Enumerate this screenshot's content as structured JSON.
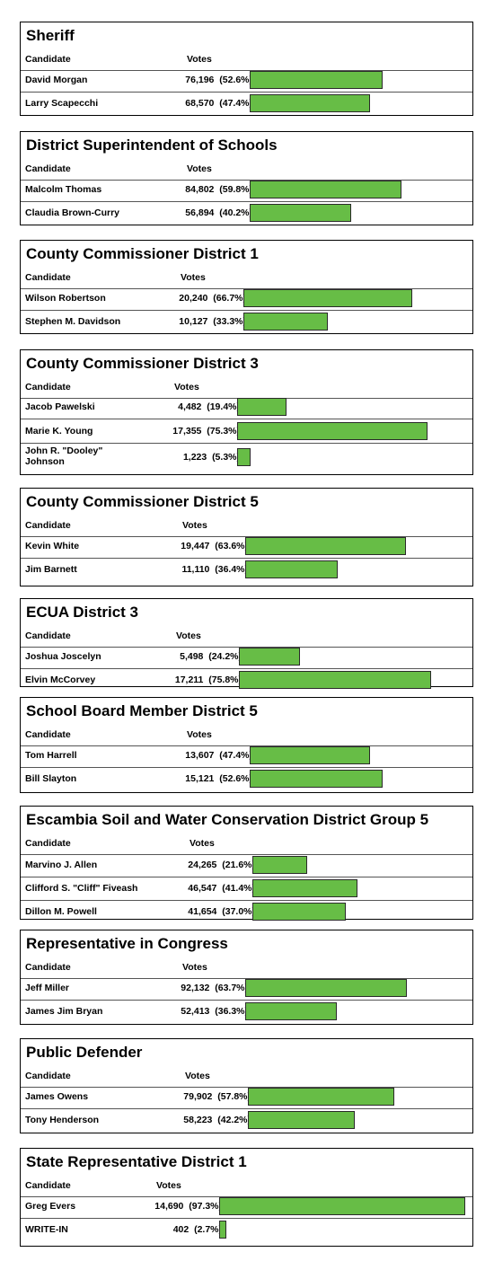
{
  "chart_data": [
    {
      "type": "bar",
      "title": "Sheriff",
      "xlabel": "",
      "ylabel": "",
      "headers": {
        "candidate": "Candidate",
        "votes": "Votes"
      },
      "categories": [
        "David Morgan",
        "Larry Scapecchi"
      ],
      "values": [
        76196,
        68570
      ],
      "votes_text": [
        "76,196",
        "68,570"
      ],
      "pct": [
        52.6,
        47.4
      ],
      "pct_text": [
        "(52.6%)",
        "(47.4%)"
      ]
    },
    {
      "type": "bar",
      "title": "District Superintendent of Schools",
      "xlabel": "",
      "ylabel": "",
      "headers": {
        "candidate": "Candidate",
        "votes": "Votes"
      },
      "categories": [
        "Malcolm Thomas",
        "Claudia Brown-Curry"
      ],
      "values": [
        84802,
        56894
      ],
      "votes_text": [
        "84,802",
        "56,894"
      ],
      "pct": [
        59.8,
        40.2
      ],
      "pct_text": [
        "(59.8%)",
        "(40.2%)"
      ]
    },
    {
      "type": "bar",
      "title": "County Commissioner District 1",
      "xlabel": "",
      "ylabel": "",
      "headers": {
        "candidate": "Candidate",
        "votes": "Votes"
      },
      "categories": [
        "Wilson Robertson",
        "Stephen M. Davidson"
      ],
      "values": [
        20240,
        10127
      ],
      "votes_text": [
        "20,240",
        "10,127"
      ],
      "pct": [
        66.7,
        33.3
      ],
      "pct_text": [
        "(66.7%)",
        "(33.3%)"
      ]
    },
    {
      "type": "bar",
      "title": "County Commissioner District 3",
      "xlabel": "",
      "ylabel": "",
      "headers": {
        "candidate": "Candidate",
        "votes": "Votes"
      },
      "categories": [
        "Jacob Pawelski",
        "Marie K. Young",
        "John R. \"Dooley\" Johnson"
      ],
      "values": [
        4482,
        17355,
        1223
      ],
      "votes_text": [
        "4,482",
        "17,355",
        "1,223"
      ],
      "pct": [
        19.4,
        75.3,
        5.3
      ],
      "pct_text": [
        "(19.4%)",
        "(75.3%)",
        "(5.3%)"
      ]
    },
    {
      "type": "bar",
      "title": "County Commissioner District 5",
      "xlabel": "",
      "ylabel": "",
      "headers": {
        "candidate": "Candidate",
        "votes": "Votes"
      },
      "categories": [
        "Kevin White",
        "Jim Barnett"
      ],
      "values": [
        19447,
        11110
      ],
      "votes_text": [
        "19,447",
        "11,110"
      ],
      "pct": [
        63.6,
        36.4
      ],
      "pct_text": [
        "(63.6%)",
        "(36.4%)"
      ]
    },
    {
      "type": "bar",
      "title": "ECUA District 3",
      "xlabel": "",
      "ylabel": "",
      "headers": {
        "candidate": "Candidate",
        "votes": "Votes"
      },
      "categories": [
        "Joshua Joscelyn",
        "Elvin McCorvey"
      ],
      "values": [
        5498,
        17211
      ],
      "votes_text": [
        "5,498",
        "17,211"
      ],
      "pct": [
        24.2,
        75.8
      ],
      "pct_text": [
        "(24.2%)",
        "(75.8%)"
      ]
    },
    {
      "type": "bar",
      "title": "School Board Member District 5",
      "xlabel": "",
      "ylabel": "",
      "headers": {
        "candidate": "Candidate",
        "votes": "Votes"
      },
      "categories": [
        "Tom Harrell",
        "Bill Slayton"
      ],
      "values": [
        13607,
        15121
      ],
      "votes_text": [
        "13,607",
        "15,121"
      ],
      "pct": [
        47.4,
        52.6
      ],
      "pct_text": [
        "(47.4%)",
        "(52.6%)"
      ]
    },
    {
      "type": "bar",
      "title": "Escambia Soil and Water Conservation District Group 5",
      "xlabel": "",
      "ylabel": "",
      "headers": {
        "candidate": "Candidate",
        "votes": "Votes"
      },
      "categories": [
        "Marvino J. Allen",
        "Clifford S. \"Cliff\" Fiveash",
        "Dillon M. Powell"
      ],
      "values": [
        24265,
        46547,
        41654
      ],
      "votes_text": [
        "24,265",
        "46,547",
        "41,654"
      ],
      "pct": [
        21.6,
        41.4,
        37.0
      ],
      "pct_text": [
        "(21.6%)",
        "(41.4%)",
        "(37.0%)"
      ]
    },
    {
      "type": "bar",
      "title": "Representative in Congress",
      "xlabel": "",
      "ylabel": "",
      "headers": {
        "candidate": "Candidate",
        "votes": "Votes"
      },
      "categories": [
        "Jeff Miller",
        "James Jim Bryan"
      ],
      "values": [
        92132,
        52413
      ],
      "votes_text": [
        "92,132",
        "52,413"
      ],
      "pct": [
        63.7,
        36.3
      ],
      "pct_text": [
        "(63.7%)",
        "(36.3%)"
      ]
    },
    {
      "type": "bar",
      "title": "Public Defender",
      "xlabel": "",
      "ylabel": "",
      "headers": {
        "candidate": "Candidate",
        "votes": "Votes"
      },
      "categories": [
        "James Owens",
        "Tony Henderson"
      ],
      "values": [
        79902,
        58223
      ],
      "votes_text": [
        "79,902",
        "58,223"
      ],
      "pct": [
        57.8,
        42.2
      ],
      "pct_text": [
        "(57.8%)",
        "(42.2%)"
      ]
    },
    {
      "type": "bar",
      "title": "State Representative District 1",
      "xlabel": "",
      "ylabel": "",
      "headers": {
        "candidate": "Candidate",
        "votes": "Votes"
      },
      "categories": [
        "Greg Evers",
        "WRITE-IN"
      ],
      "values": [
        14690,
        402
      ],
      "votes_text": [
        "14,690",
        "402"
      ],
      "pct": [
        97.3,
        2.7
      ],
      "pct_text": [
        "(97.3%)",
        "(2.7%)"
      ]
    }
  ],
  "colors": {
    "bar_fill": "#67bd46",
    "bar_border": "#2a2a2a",
    "frame": "#000000"
  }
}
